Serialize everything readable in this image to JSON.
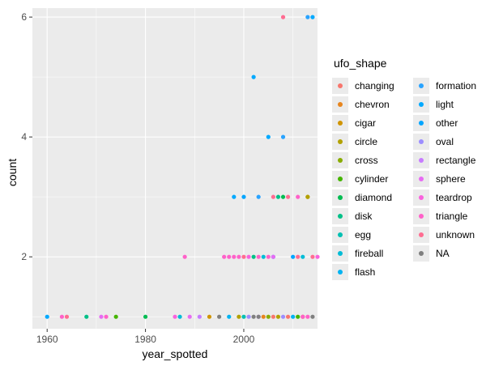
{
  "chart_data": {
    "type": "scatter",
    "title": "",
    "xlabel": "year_spotted",
    "ylabel": "count",
    "xlim": [
      1957,
      2015
    ],
    "ylim": [
      0.8,
      6.15
    ],
    "x_ticks": [
      1960,
      1980,
      2000
    ],
    "x_tick_labels": [
      "1960",
      "1980",
      "2000"
    ],
    "y_ticks": [
      2,
      4,
      6
    ],
    "y_tick_labels": [
      "2",
      "4",
      "6"
    ],
    "grid": true,
    "legend_title": "ufo_shape",
    "legend_position": "right",
    "series": [
      {
        "name": "changing",
        "color": "#F8766D",
        "points": [
          [
            2006,
            1
          ],
          [
            2009,
            1
          ]
        ]
      },
      {
        "name": "chevron",
        "color": "#E7851E",
        "points": [
          [
            2004,
            1
          ]
        ]
      },
      {
        "name": "cigar",
        "color": "#D09400",
        "points": [
          [
            1993,
            1
          ],
          [
            2012,
            1
          ],
          [
            2013,
            3
          ]
        ]
      },
      {
        "name": "circle",
        "color": "#B2A100",
        "points": [
          [
            1999,
            1
          ],
          [
            2007,
            1
          ],
          [
            2013,
            3
          ]
        ]
      },
      {
        "name": "cross",
        "color": "#89AC00",
        "points": [
          [
            2005,
            1
          ]
        ]
      },
      {
        "name": "cylinder",
        "color": "#45B500",
        "points": [
          [
            1974,
            1
          ],
          [
            2011,
            1
          ]
        ]
      },
      {
        "name": "diamond",
        "color": "#00BC51",
        "points": [
          [
            1980,
            1
          ],
          [
            2008,
            3
          ]
        ]
      },
      {
        "name": "disk",
        "color": "#00C087",
        "points": [
          [
            1968,
            1
          ],
          [
            2002,
            2
          ],
          [
            2007,
            3
          ]
        ]
      },
      {
        "name": "egg",
        "color": "#00C0B2",
        "points": [
          [
            2000,
            1
          ]
        ]
      },
      {
        "name": "fireball",
        "color": "#00BCD6",
        "points": [
          [
            1987,
            1
          ],
          [
            2004,
            2
          ],
          [
            2012,
            2
          ]
        ]
      },
      {
        "name": "flash",
        "color": "#00B3F2",
        "points": [
          [
            1997,
            1
          ],
          [
            2010,
            1
          ]
        ]
      },
      {
        "name": "formation",
        "color": "#29A3FF",
        "points": [
          [
            2003,
            3
          ],
          [
            2008,
            4
          ],
          [
            2013,
            6
          ]
        ]
      },
      {
        "name": "light",
        "color": "#00A9FF",
        "points": [
          [
            1960,
            1
          ],
          [
            1998,
            3
          ],
          [
            2002,
            5
          ],
          [
            2005,
            4
          ],
          [
            2006,
            2
          ],
          [
            2014,
            6
          ]
        ]
      },
      {
        "name": "other",
        "color": "#00A5FF",
        "points": [
          [
            2000,
            3
          ],
          [
            2010,
            2
          ]
        ]
      },
      {
        "name": "oval",
        "color": "#9C8DFF",
        "points": [
          [
            2001,
            1
          ],
          [
            2008,
            1
          ]
        ]
      },
      {
        "name": "rectangle",
        "color": "#C77CFF",
        "points": [
          [
            1991,
            1
          ],
          [
            2003,
            1
          ]
        ]
      },
      {
        "name": "sphere",
        "color": "#E76BF3",
        "points": [
          [
            1971,
            1
          ],
          [
            1989,
            1
          ],
          [
            2006,
            2
          ]
        ]
      },
      {
        "name": "teardrop",
        "color": "#F962DD",
        "points": [
          [
            1986,
            1
          ],
          [
            2001,
            2
          ],
          [
            2015,
            2
          ]
        ]
      },
      {
        "name": "triangle",
        "color": "#FF61C9",
        "points": [
          [
            1963,
            1
          ],
          [
            1972,
            1
          ],
          [
            1988,
            2
          ],
          [
            1996,
            2
          ],
          [
            1997,
            2
          ],
          [
            1998,
            2
          ],
          [
            1999,
            2
          ],
          [
            2003,
            2
          ],
          [
            2005,
            2
          ],
          [
            2011,
            3
          ],
          [
            2012,
            1
          ],
          [
            2013,
            1
          ]
        ]
      },
      {
        "name": "unknown",
        "color": "#FF6C91",
        "points": [
          [
            1964,
            1
          ],
          [
            2000,
            2
          ],
          [
            2006,
            3
          ],
          [
            2008,
            6
          ],
          [
            2009,
            3
          ],
          [
            2011,
            2
          ],
          [
            2014,
            2
          ]
        ]
      },
      {
        "name": "NA",
        "color": "#7F7F7F",
        "points": [
          [
            1995,
            1
          ],
          [
            2002,
            1
          ],
          [
            2003,
            1
          ],
          [
            2014,
            1
          ]
        ]
      }
    ]
  }
}
